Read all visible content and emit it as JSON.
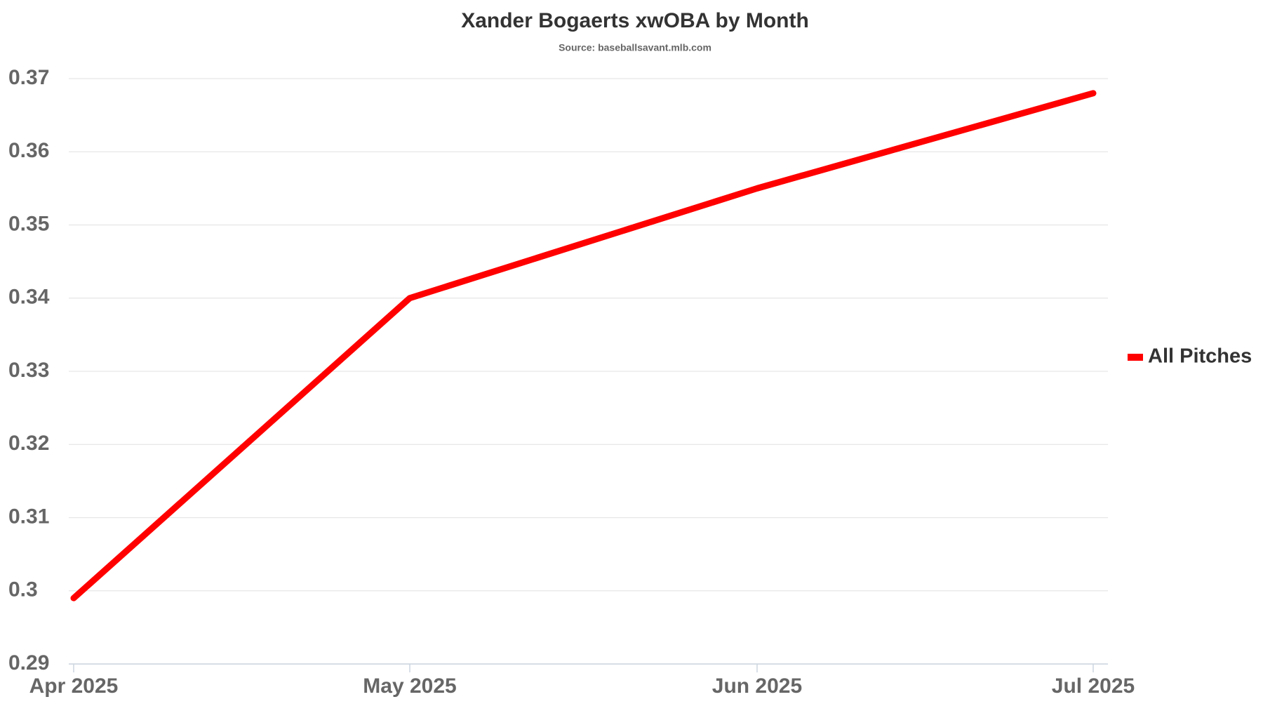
{
  "chart_data": {
    "type": "line",
    "title": "Xander Bogaerts xwOBA by Month",
    "subtitle": "Source: baseballsavant.mlb.com",
    "x": [
      "2025-04",
      "2025-05",
      "2025-06",
      "2025-07"
    ],
    "xlim": [
      "2025-04",
      "2025-07"
    ],
    "xticks": [
      {
        "value": "2025-04",
        "label": "Apr 2025"
      },
      {
        "value": "2025-05",
        "label": "May 2025"
      },
      {
        "value": "2025-06",
        "label": "Jun 2025"
      },
      {
        "value": "2025-07",
        "label": "Jul 2025"
      }
    ],
    "series": [
      {
        "name": "All Pitches",
        "color": "#ff0000",
        "values": [
          0.299,
          0.34,
          0.355,
          0.368
        ]
      }
    ],
    "ylim": [
      0.29,
      0.37
    ],
    "yticks": [
      0.29,
      0.3,
      0.31,
      0.32,
      0.33,
      0.34,
      0.35,
      0.36,
      0.37
    ],
    "grid": true,
    "legend": "right"
  }
}
